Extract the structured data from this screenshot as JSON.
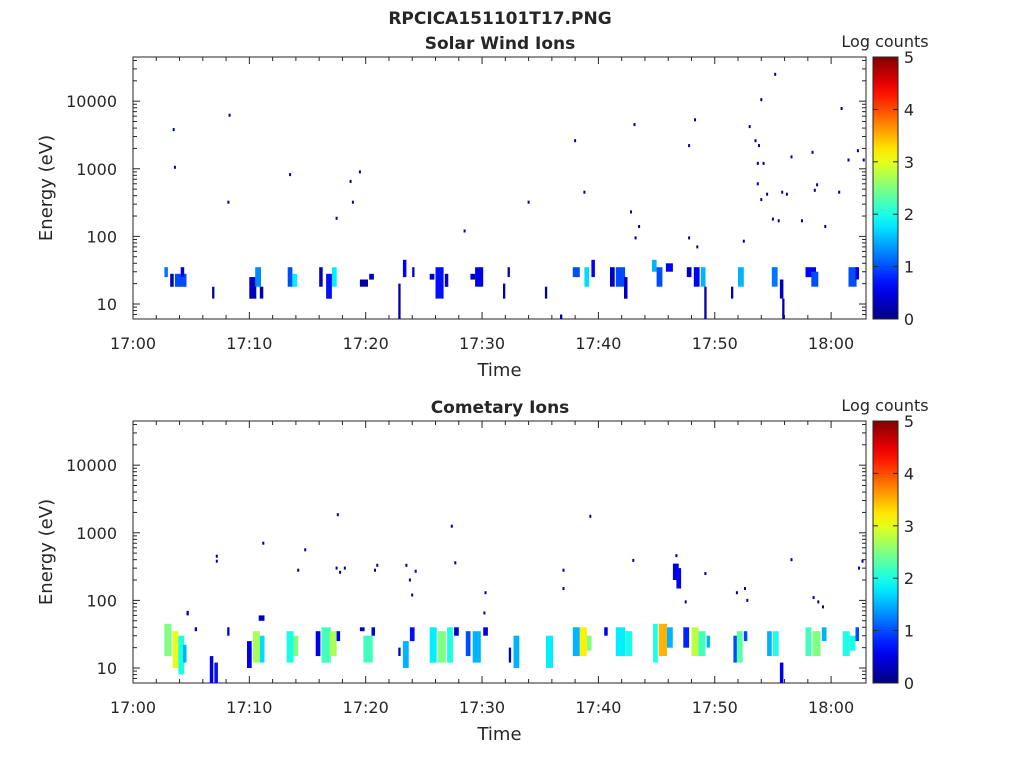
{
  "figure_title": "RPCICA151101T17.PNG",
  "chart_data": [
    {
      "type": "heatmap",
      "title": "Solar Wind Ions",
      "xlabel": "Time",
      "ylabel": "Energy (eV)",
      "x_tick_labels": [
        "17:00",
        "17:10",
        "17:20",
        "17:30",
        "17:40",
        "17:50",
        "18:00"
      ],
      "y_tick_labels": [
        "10",
        "100",
        "1000",
        "10000"
      ],
      "y_scale": "log",
      "xlim_minutes": [
        0,
        63
      ],
      "ylim": [
        6,
        45000
      ],
      "colorbar": {
        "label": "Log counts",
        "ticks": [
          "0",
          "1",
          "2",
          "3",
          "4",
          "5"
        ],
        "range": [
          0,
          5
        ],
        "colormap": "jet"
      },
      "grid": false,
      "points": [
        [
          3.5,
          3800,
          0.1
        ],
        [
          3.6,
          1050,
          0.1
        ],
        [
          8.3,
          6200,
          0.1
        ],
        [
          8.2,
          320,
          0.1
        ],
        [
          13.5,
          820,
          0.1
        ],
        [
          17.5,
          185,
          0.1
        ],
        [
          18.7,
          650,
          0.1
        ],
        [
          19.5,
          900,
          0.1
        ],
        [
          18.9,
          320,
          0.1
        ],
        [
          28.5,
          120,
          0.2
        ],
        [
          34.0,
          320,
          0.1
        ],
        [
          38.0,
          2600,
          0.1
        ],
        [
          38.8,
          450,
          0.1
        ],
        [
          42.8,
          230,
          0.1
        ],
        [
          43.1,
          4500,
          0.1
        ],
        [
          43.2,
          95,
          0.1
        ],
        [
          43.5,
          140,
          0.1
        ],
        [
          47.8,
          2200,
          0.1
        ],
        [
          47.8,
          95,
          0.1
        ],
        [
          48.3,
          5300,
          0.1
        ],
        [
          48.5,
          70,
          0.1
        ],
        [
          52.5,
          85,
          0.1
        ],
        [
          53.0,
          4200,
          0.1
        ],
        [
          53.5,
          2600,
          0.1
        ],
        [
          53.7,
          1200,
          0.1
        ],
        [
          53.8,
          2200,
          0.1
        ],
        [
          54.0,
          10500,
          0.1
        ],
        [
          54.2,
          1200,
          0.1
        ],
        [
          53.7,
          600,
          0.1
        ],
        [
          54.0,
          350,
          0.1
        ],
        [
          54.5,
          420,
          0.1
        ],
        [
          55.0,
          180,
          0.1
        ],
        [
          55.5,
          170,
          0.1
        ],
        [
          55.2,
          25000,
          0.1
        ],
        [
          55.8,
          450,
          0.1
        ],
        [
          56.2,
          420,
          0.1
        ],
        [
          56.6,
          1500,
          0.1
        ],
        [
          57.5,
          170,
          0.1
        ],
        [
          58.4,
          1750,
          0.1
        ],
        [
          58.6,
          480,
          0.1
        ],
        [
          58.8,
          580,
          0.1
        ],
        [
          59.5,
          140,
          0.1
        ],
        [
          60.7,
          450,
          0.1
        ],
        [
          60.9,
          7800,
          0.1
        ],
        [
          61.5,
          1350,
          0.1
        ],
        [
          62.3,
          1850,
          0.1
        ],
        [
          62.8,
          1350,
          0.1
        ]
      ],
      "bursts": [
        [
          2.7,
          0.3,
          25,
          35,
          1.2
        ],
        [
          3.2,
          0.3,
          18,
          28,
          0.3
        ],
        [
          3.6,
          1.0,
          18,
          28,
          1.0
        ],
        [
          4.1,
          0.3,
          25,
          35,
          0.5
        ],
        [
          6.8,
          0.2,
          12,
          18,
          0.2
        ],
        [
          10.0,
          0.6,
          12,
          25,
          0.3
        ],
        [
          10.5,
          0.5,
          18,
          35,
          1.3
        ],
        [
          10.9,
          0.3,
          12,
          18,
          0.2
        ],
        [
          13.3,
          0.4,
          18,
          35,
          1.0
        ],
        [
          13.7,
          0.4,
          18,
          28,
          1.8
        ],
        [
          16.0,
          0.3,
          18,
          35,
          0.3
        ],
        [
          16.6,
          0.5,
          12,
          28,
          0.7
        ],
        [
          17.1,
          0.4,
          18,
          35,
          1.8
        ],
        [
          19.5,
          0.7,
          18,
          23,
          0.2
        ],
        [
          20.3,
          0.4,
          23,
          28,
          0.4
        ],
        [
          22.8,
          0.2,
          6,
          20,
          0.2
        ],
        [
          23.2,
          0.3,
          25,
          45,
          0.6
        ],
        [
          24.0,
          0.2,
          25,
          35,
          0.3
        ],
        [
          25.5,
          0.4,
          23,
          28,
          0.3
        ],
        [
          26.0,
          0.7,
          12,
          35,
          0.7
        ],
        [
          26.8,
          0.3,
          18,
          28,
          0.3
        ],
        [
          29.0,
          0.4,
          23,
          28,
          0.3
        ],
        [
          29.4,
          0.7,
          18,
          35,
          0.5
        ],
        [
          31.8,
          0.2,
          12,
          20,
          0.2
        ],
        [
          32.2,
          0.2,
          25,
          35,
          0.3
        ],
        [
          35.4,
          0.2,
          12,
          18,
          0.2
        ],
        [
          36.7,
          0.2,
          6,
          7,
          0.2
        ],
        [
          37.8,
          0.6,
          25,
          35,
          1.0
        ],
        [
          38.8,
          0.4,
          18,
          35,
          1.7
        ],
        [
          39.4,
          0.3,
          25,
          45,
          0.6
        ],
        [
          41.0,
          0.4,
          18,
          35,
          0.3
        ],
        [
          41.5,
          0.8,
          18,
          35,
          1.0
        ],
        [
          42.2,
          0.3,
          12,
          25,
          0.3
        ],
        [
          44.6,
          0.4,
          30,
          45,
          1.5
        ],
        [
          45.0,
          0.5,
          18,
          35,
          1.0
        ],
        [
          45.8,
          0.6,
          30,
          40,
          0.6
        ],
        [
          47.6,
          0.4,
          25,
          35,
          0.3
        ],
        [
          48.2,
          0.5,
          18,
          35,
          0.6
        ],
        [
          48.8,
          0.4,
          18,
          35,
          1.5
        ],
        [
          49.1,
          0.2,
          6,
          18,
          0.2
        ],
        [
          51.4,
          0.2,
          12,
          18,
          0.2
        ],
        [
          52.0,
          0.5,
          18,
          35,
          1.5
        ],
        [
          54.9,
          0.5,
          18,
          35,
          1.2
        ],
        [
          55.6,
          0.3,
          12,
          23,
          0.3
        ],
        [
          55.8,
          0.2,
          6,
          12,
          0.2
        ],
        [
          57.8,
          0.9,
          25,
          35,
          0.6
        ],
        [
          58.3,
          0.6,
          18,
          30,
          1.0
        ],
        [
          61.5,
          0.7,
          18,
          35,
          1.0
        ],
        [
          62.1,
          0.3,
          23,
          35,
          0.5
        ]
      ]
    },
    {
      "type": "heatmap",
      "title": "Cometary Ions",
      "xlabel": "Time",
      "ylabel": "Energy (eV)",
      "x_tick_labels": [
        "17:00",
        "17:10",
        "17:20",
        "17:30",
        "17:40",
        "17:50",
        "18:00"
      ],
      "y_tick_labels": [
        "10",
        "100",
        "1000",
        "10000"
      ],
      "y_scale": "log",
      "xlim_minutes": [
        0,
        63
      ],
      "ylim": [
        6,
        45000
      ],
      "colorbar": {
        "label": "Log counts",
        "ticks": [
          "0",
          "1",
          "2",
          "3",
          "4",
          "5"
        ],
        "range": [
          0,
          5
        ],
        "colormap": "jet"
      },
      "grid": false,
      "points": [
        [
          7.2,
          450,
          0.1
        ],
        [
          7.2,
          380,
          0.1
        ],
        [
          11.2,
          700,
          0.1
        ],
        [
          14.2,
          280,
          0.1
        ],
        [
          14.8,
          560,
          0.1
        ],
        [
          17.6,
          1850,
          0.1
        ],
        [
          17.5,
          300,
          0.1
        ],
        [
          17.8,
          260,
          0.1
        ],
        [
          18.2,
          300,
          0.1
        ],
        [
          20.8,
          280,
          0.1
        ],
        [
          21.0,
          330,
          0.1
        ],
        [
          23.5,
          330,
          0.1
        ],
        [
          23.8,
          200,
          0.1
        ],
        [
          24.0,
          120,
          0.1
        ],
        [
          24.3,
          270,
          0.1
        ],
        [
          27.4,
          1250,
          0.1
        ],
        [
          27.7,
          360,
          0.1
        ],
        [
          30.3,
          130,
          0.1
        ],
        [
          30.2,
          65,
          0.1
        ],
        [
          37.0,
          280,
          0.1
        ],
        [
          37.0,
          150,
          0.1
        ],
        [
          39.3,
          1750,
          0.1
        ],
        [
          43.0,
          390,
          0.1
        ],
        [
          46.7,
          460,
          0.1
        ],
        [
          47.5,
          95,
          0.1
        ],
        [
          49.2,
          250,
          0.1
        ],
        [
          51.9,
          130,
          0.1
        ],
        [
          52.6,
          150,
          0.1
        ],
        [
          52.8,
          100,
          0.1
        ],
        [
          56.6,
          400,
          0.1
        ],
        [
          58.5,
          110,
          0.1
        ],
        [
          58.9,
          95,
          0.1
        ],
        [
          59.3,
          80,
          0.1
        ],
        [
          62.4,
          300,
          0.1
        ],
        [
          62.7,
          380,
          0.1
        ]
      ],
      "bursts": [
        [
          2.7,
          0.6,
          15,
          45,
          2.5
        ],
        [
          3.4,
          0.5,
          10,
          35,
          3.0
        ],
        [
          3.9,
          0.5,
          8,
          30,
          2.0
        ],
        [
          4.3,
          0.3,
          12,
          22,
          1.5
        ],
        [
          4.6,
          0.2,
          60,
          70,
          0.3
        ],
        [
          5.3,
          0.2,
          35,
          40,
          0.3
        ],
        [
          6.6,
          0.3,
          6,
          15,
          0.5
        ],
        [
          7.0,
          0.3,
          6,
          12,
          0.7
        ],
        [
          8.1,
          0.2,
          30,
          40,
          0.4
        ],
        [
          9.8,
          0.4,
          10,
          25,
          0.5
        ],
        [
          10.3,
          0.6,
          12,
          35,
          2.7
        ],
        [
          10.9,
          0.4,
          12,
          30,
          1.7
        ],
        [
          10.8,
          0.5,
          50,
          60,
          0.3
        ],
        [
          13.2,
          0.6,
          12,
          35,
          2.0
        ],
        [
          13.8,
          0.4,
          15,
          30,
          2.5
        ],
        [
          15.7,
          0.4,
          15,
          35,
          0.5
        ],
        [
          16.2,
          0.8,
          12,
          40,
          2.2
        ],
        [
          16.9,
          0.6,
          15,
          35,
          2.7
        ],
        [
          17.5,
          0.3,
          25,
          35,
          0.5
        ],
        [
          19.5,
          0.4,
          35,
          40,
          0.3
        ],
        [
          19.8,
          0.8,
          12,
          30,
          2.2
        ],
        [
          20.5,
          0.3,
          30,
          40,
          0.4
        ],
        [
          22.8,
          0.2,
          15,
          20,
          0.3
        ],
        [
          23.2,
          0.5,
          10,
          25,
          1.5
        ],
        [
          23.8,
          0.4,
          25,
          40,
          0.7
        ],
        [
          25.5,
          0.6,
          12,
          40,
          1.8
        ],
        [
          26.2,
          0.7,
          12,
          35,
          2.5
        ],
        [
          27.0,
          0.5,
          12,
          40,
          2.0
        ],
        [
          27.6,
          0.4,
          30,
          40,
          0.4
        ],
        [
          28.6,
          0.4,
          15,
          35,
          1.0
        ],
        [
          29.2,
          0.7,
          12,
          35,
          1.5
        ],
        [
          30.1,
          0.4,
          30,
          40,
          0.5
        ],
        [
          32.3,
          0.2,
          12,
          20,
          0.3
        ],
        [
          32.7,
          0.5,
          10,
          30,
          1.5
        ],
        [
          35.5,
          0.6,
          10,
          30,
          1.8
        ],
        [
          37.8,
          0.6,
          15,
          40,
          1.5
        ],
        [
          38.4,
          0.6,
          15,
          40,
          3.2
        ],
        [
          39.0,
          0.4,
          18,
          30,
          2.5
        ],
        [
          40.5,
          0.3,
          30,
          40,
          0.5
        ],
        [
          41.5,
          0.8,
          15,
          40,
          1.8
        ],
        [
          42.3,
          0.6,
          15,
          35,
          2.0
        ],
        [
          44.7,
          0.4,
          12,
          45,
          2.0
        ],
        [
          45.2,
          0.7,
          15,
          45,
          3.5
        ],
        [
          45.9,
          0.5,
          20,
          40,
          1.5
        ],
        [
          46.4,
          0.5,
          200,
          350,
          0.4
        ],
        [
          46.7,
          0.4,
          150,
          300,
          0.6
        ],
        [
          47.3,
          0.5,
          20,
          40,
          0.8
        ],
        [
          48.0,
          0.6,
          15,
          40,
          2.8
        ],
        [
          48.6,
          0.6,
          15,
          35,
          2.2
        ],
        [
          49.3,
          0.3,
          20,
          30,
          1.5
        ],
        [
          51.6,
          0.3,
          12,
          30,
          1.0
        ],
        [
          51.9,
          0.5,
          12,
          35,
          2.3
        ],
        [
          52.5,
          0.3,
          25,
          35,
          1.0
        ],
        [
          54.5,
          0.4,
          15,
          35,
          1.5
        ],
        [
          55.0,
          0.5,
          15,
          35,
          2.0
        ],
        [
          55.6,
          0.3,
          6,
          12,
          0.5
        ],
        [
          57.8,
          0.5,
          15,
          40,
          2.2
        ],
        [
          58.4,
          0.7,
          15,
          35,
          2.5
        ],
        [
          59.2,
          0.4,
          25,
          40,
          1.5
        ],
        [
          61.0,
          0.6,
          15,
          35,
          2.0
        ],
        [
          61.6,
          0.5,
          18,
          30,
          2.0
        ],
        [
          62.1,
          0.3,
          25,
          40,
          1.0
        ]
      ]
    }
  ]
}
